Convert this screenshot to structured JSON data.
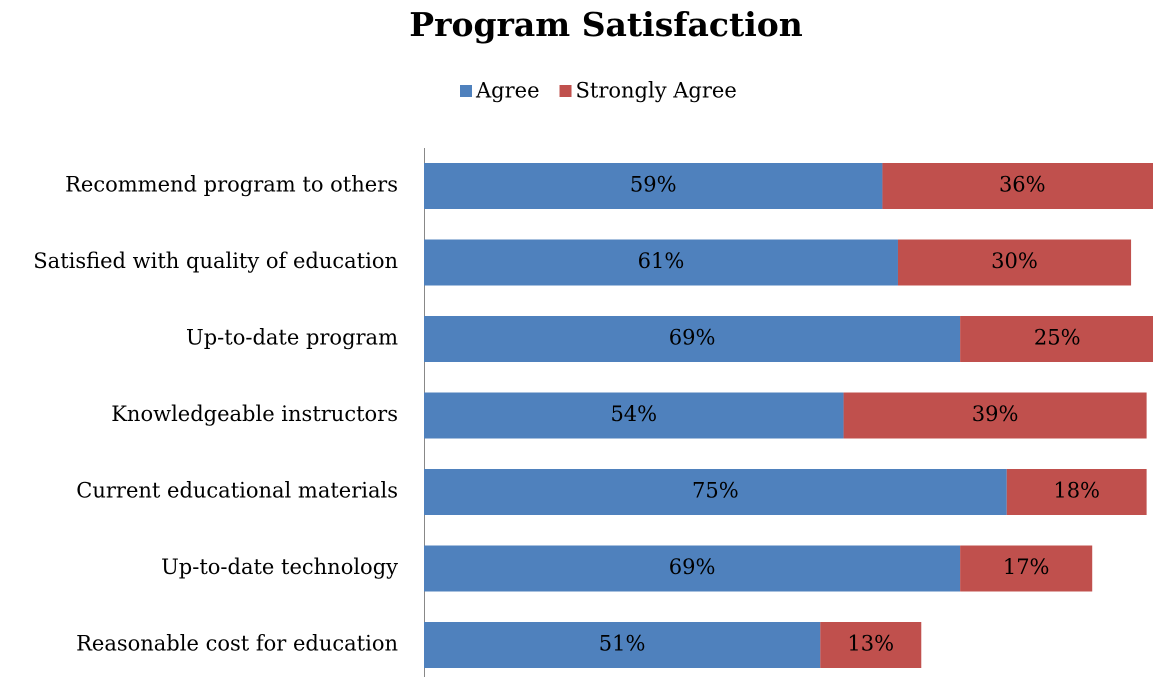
{
  "chart_data": {
    "type": "bar",
    "orientation": "horizontal",
    "stacked": true,
    "title": "Program Satisfaction",
    "categories": [
      "Recommend program to others",
      "Satisfied with quality of education",
      "Up-to-date program",
      "Knowledgeable instructors",
      "Current educational materials",
      "Up-to-date technology",
      "Reasonable cost for education"
    ],
    "series": [
      {
        "name": "Agree",
        "color": "#4f81bd",
        "values": [
          59,
          61,
          69,
          54,
          75,
          69,
          51
        ],
        "value_labels": [
          "59%",
          "61%",
          "69%",
          "54%",
          "75%",
          "69%",
          "51%"
        ]
      },
      {
        "name": "Strongly Agree",
        "color": "#c0504d",
        "values": [
          36,
          30,
          25,
          39,
          18,
          17,
          13
        ],
        "value_labels": [
          "36%",
          "30%",
          "25%",
          "39%",
          "18%",
          "17%",
          "13%"
        ]
      }
    ],
    "legend": "top"
  }
}
